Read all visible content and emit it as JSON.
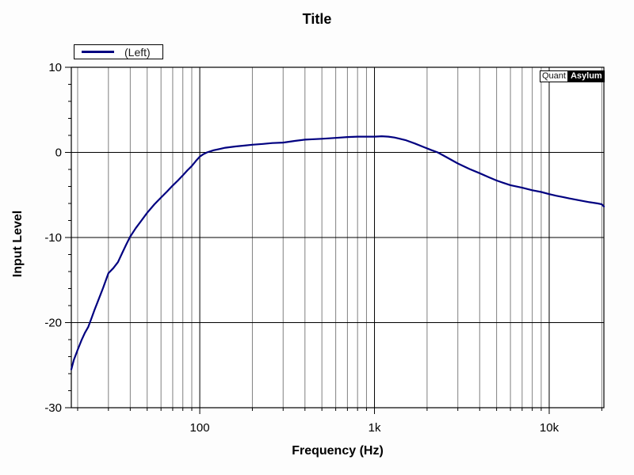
{
  "logo": {
    "part1": "Quant",
    "part2": "Asylum"
  },
  "colors": {
    "curve": "#000080",
    "axis": "#000000",
    "minor_grid": "#808080",
    "background": "#fdfdfd",
    "plot_background": "#ffffff",
    "text": "#000000"
  },
  "chart_data": {
    "type": "line",
    "title": "Title",
    "xlabel": "Frequency (Hz)",
    "ylabel": "Input Level",
    "x_scale": "log",
    "xlim": [
      18.4,
      20560
    ],
    "ylim": [
      -30,
      10
    ],
    "grid": true,
    "legend_label": "(Left)",
    "legend_position": "top-left",
    "y_major_ticks": [
      {
        "value": 10,
        "label": "10"
      },
      {
        "value": 0,
        "label": "0"
      },
      {
        "value": -10,
        "label": "-10"
      },
      {
        "value": -20,
        "label": "-20"
      },
      {
        "value": -30,
        "label": "-30"
      }
    ],
    "y_minor_tick_step": 2,
    "x_major_ticks": [
      {
        "value": 100,
        "label": "100"
      },
      {
        "value": 1000,
        "label": "1k"
      },
      {
        "value": 10000,
        "label": "10k"
      }
    ],
    "x_minor_ticks": [
      20,
      30,
      40,
      50,
      60,
      70,
      80,
      90,
      200,
      300,
      400,
      500,
      600,
      700,
      800,
      900,
      2000,
      3000,
      4000,
      5000,
      6000,
      7000,
      8000,
      9000,
      20000
    ],
    "series": [
      {
        "name": "(Left)",
        "color": "#000080",
        "points": [
          [
            18.4,
            -25.5
          ],
          [
            19,
            -24.4
          ],
          [
            20,
            -23.2
          ],
          [
            21,
            -22.1
          ],
          [
            22,
            -21.2
          ],
          [
            23,
            -20.5
          ],
          [
            24,
            -19.5
          ],
          [
            25,
            -18.5
          ],
          [
            26,
            -17.6
          ],
          [
            28,
            -15.9
          ],
          [
            30,
            -14.2
          ],
          [
            32,
            -13.6
          ],
          [
            34,
            -12.9
          ],
          [
            36,
            -11.8
          ],
          [
            38,
            -10.8
          ],
          [
            40,
            -9.9
          ],
          [
            43,
            -8.9
          ],
          [
            46,
            -8.1
          ],
          [
            50,
            -7.1
          ],
          [
            55,
            -6.1
          ],
          [
            60,
            -5.3
          ],
          [
            65,
            -4.6
          ],
          [
            70,
            -3.9
          ],
          [
            75,
            -3.3
          ],
          [
            80,
            -2.7
          ],
          [
            85,
            -2.1
          ],
          [
            90,
            -1.6
          ],
          [
            95,
            -1.0
          ],
          [
            100,
            -0.5
          ],
          [
            105,
            -0.2
          ],
          [
            110,
            0.0
          ],
          [
            120,
            0.25
          ],
          [
            130,
            0.4
          ],
          [
            140,
            0.55
          ],
          [
            160,
            0.7
          ],
          [
            180,
            0.8
          ],
          [
            200,
            0.9
          ],
          [
            230,
            1.0
          ],
          [
            260,
            1.1
          ],
          [
            300,
            1.15
          ],
          [
            350,
            1.35
          ],
          [
            400,
            1.5
          ],
          [
            450,
            1.55
          ],
          [
            500,
            1.6
          ],
          [
            600,
            1.7
          ],
          [
            700,
            1.8
          ],
          [
            800,
            1.85
          ],
          [
            900,
            1.85
          ],
          [
            1000,
            1.85
          ],
          [
            1100,
            1.9
          ],
          [
            1200,
            1.85
          ],
          [
            1300,
            1.75
          ],
          [
            1400,
            1.6
          ],
          [
            1500,
            1.45
          ],
          [
            1700,
            1.05
          ],
          [
            1900,
            0.65
          ],
          [
            2100,
            0.3
          ],
          [
            2300,
            0.0
          ],
          [
            2600,
            -0.6
          ],
          [
            3000,
            -1.3
          ],
          [
            3500,
            -1.95
          ],
          [
            4000,
            -2.45
          ],
          [
            4500,
            -2.9
          ],
          [
            5000,
            -3.3
          ],
          [
            5500,
            -3.6
          ],
          [
            6000,
            -3.85
          ],
          [
            7000,
            -4.15
          ],
          [
            8000,
            -4.45
          ],
          [
            9000,
            -4.65
          ],
          [
            10000,
            -4.9
          ],
          [
            11000,
            -5.1
          ],
          [
            12000,
            -5.25
          ],
          [
            13000,
            -5.4
          ],
          [
            15000,
            -5.65
          ],
          [
            17000,
            -5.85
          ],
          [
            19000,
            -6.0
          ],
          [
            20000,
            -6.1
          ],
          [
            20560,
            -6.35
          ]
        ]
      }
    ]
  }
}
